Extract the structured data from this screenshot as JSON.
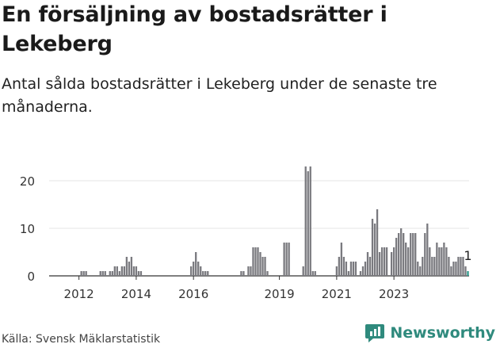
{
  "title": "En försäljning av bostadsrätter i Lekeberg",
  "subtitle": "Antal sålda bostadsrätter i Lekeberg under de senaste tre månaderna.",
  "source": "Källa: Svensk Mäklarstatistik",
  "brand": {
    "name": "Newsworthy",
    "icon": "newsworthy-logo-icon"
  },
  "colors": {
    "bar": "#7a7a7f",
    "highlight": "#2f9a8c",
    "axis": "#333333",
    "grid": "#e6e6e6",
    "brand": "#2f8a7d"
  },
  "chart_data": {
    "type": "bar",
    "start_year": 2011,
    "start_month": 1,
    "values": [
      0,
      0,
      0,
      0,
      0,
      0,
      0,
      0,
      0,
      0,
      0,
      0,
      0,
      1,
      1,
      1,
      0,
      0,
      0,
      0,
      0,
      1,
      1,
      1,
      0,
      1,
      1,
      2,
      2,
      1,
      2,
      2,
      4,
      3,
      4,
      2,
      2,
      1,
      1,
      0,
      0,
      0,
      0,
      0,
      0,
      0,
      0,
      0,
      0,
      0,
      0,
      0,
      0,
      0,
      0,
      0,
      0,
      0,
      0,
      2,
      3,
      5,
      3,
      2,
      1,
      1,
      1,
      0,
      0,
      0,
      0,
      0,
      0,
      0,
      0,
      0,
      0,
      0,
      0,
      0,
      1,
      1,
      0,
      2,
      2,
      6,
      6,
      6,
      5,
      4,
      4,
      1,
      0,
      0,
      0,
      0,
      0,
      0,
      7,
      7,
      7,
      0,
      0,
      0,
      0,
      0,
      2,
      23,
      22,
      23,
      1,
      1,
      0,
      0,
      0,
      0,
      0,
      0,
      0,
      0,
      2,
      4,
      7,
      4,
      3,
      1,
      3,
      3,
      3,
      0,
      1,
      2,
      3,
      5,
      4,
      12,
      11,
      14,
      5,
      6,
      6,
      6,
      0,
      5,
      6,
      8,
      9,
      10,
      9,
      7,
      6,
      9,
      9,
      9,
      3,
      2,
      4,
      9,
      11,
      6,
      4,
      4,
      7,
      6,
      6,
      7,
      6,
      4,
      2,
      3,
      3,
      4,
      4,
      4,
      2,
      1
    ],
    "highlight_last": true,
    "last_value_label": "1",
    "x_ticks": [
      "2012",
      "2014",
      "2016",
      "2019",
      "2021",
      "2023"
    ],
    "y_ticks": [
      "0",
      "10",
      "20"
    ],
    "ylim": [
      0,
      24
    ],
    "grid": "horizontal"
  }
}
